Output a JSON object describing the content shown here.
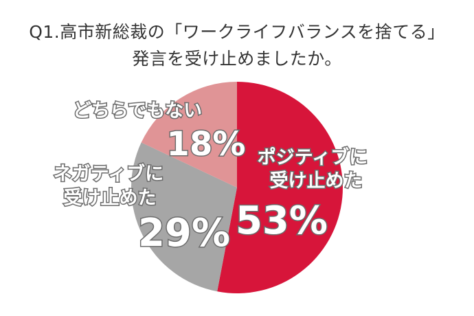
{
  "title_line1": "Q1.高市新総裁の「ワークライフバランスを捨てる」",
  "title_line2": "発言を受け止めましたか。",
  "chart_data": {
    "type": "pie",
    "start": "top, clockwise",
    "slices": [
      {
        "label_line1": "ポジティブに",
        "label_line2": "受け止めた",
        "value": 53,
        "value_label": "53%",
        "color": "#d7153a"
      },
      {
        "label_line1": "ネガティブに",
        "label_line2": "受け止めた",
        "value": 29,
        "value_label": "29%",
        "color": "#a6a6a6"
      },
      {
        "label_line1": "どちらでもない",
        "label_line2": "",
        "value": 18,
        "value_label": "18%",
        "color": "#e09496"
      }
    ]
  }
}
